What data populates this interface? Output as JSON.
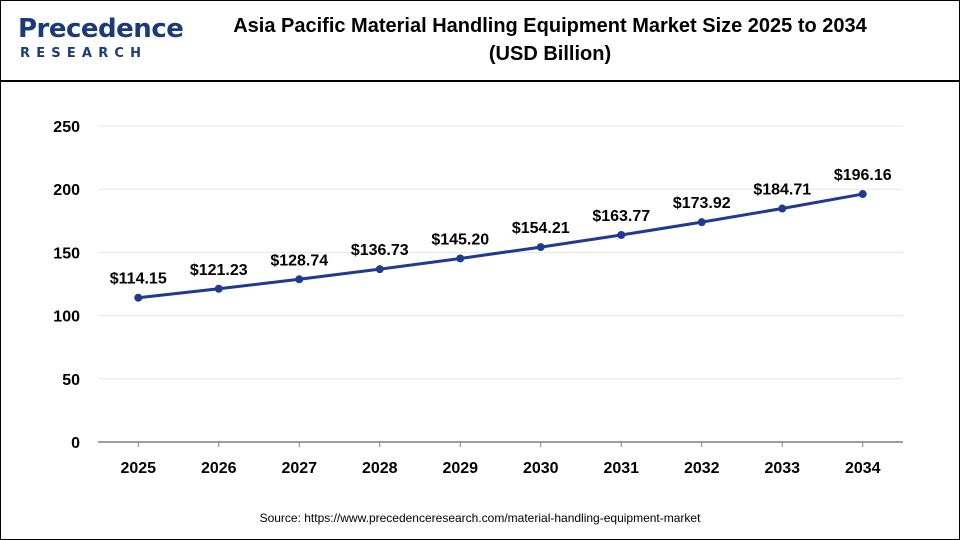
{
  "brand": {
    "logo_top": "Precedence",
    "logo_bottom": "RESEARCH"
  },
  "title_line1": "Asia Pacific Material Handling Equipment Market Size 2025 to 2034",
  "title_line2": "(USD Billion)",
  "source": "Source: https://www.precedenceresearch.com/material-handling-equipment-market",
  "colors": {
    "line": "#1f3a8f",
    "brand": "#1a3a7a",
    "accent": "#2a6fdb"
  },
  "chart_data": {
    "type": "line",
    "categories": [
      "2025",
      "2026",
      "2027",
      "2028",
      "2029",
      "2030",
      "2031",
      "2032",
      "2033",
      "2034"
    ],
    "values": [
      114.15,
      121.23,
      128.74,
      136.73,
      145.2,
      154.21,
      163.77,
      173.92,
      184.71,
      196.16
    ],
    "data_labels": [
      "$114.15",
      "$121.23",
      "$128.74",
      "$136.73",
      "$145.20",
      "$154.21",
      "$163.77",
      "$173.92",
      "$184.71",
      "$196.16"
    ],
    "y_ticks": [
      0,
      50,
      100,
      150,
      200,
      250
    ],
    "ylim": [
      0,
      250
    ],
    "xlabel": "",
    "ylabel": "",
    "grid": true,
    "legend": "none"
  }
}
